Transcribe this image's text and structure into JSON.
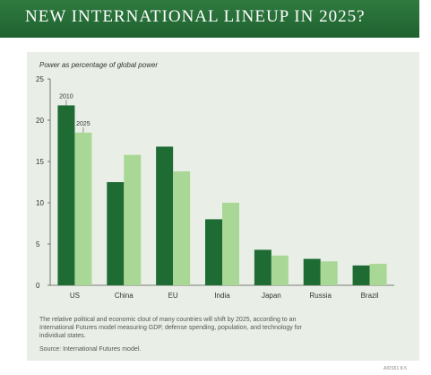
{
  "banner": {
    "title": "NEW INTERNATIONAL LINEUP IN 2025?"
  },
  "chart_data": {
    "type": "bar",
    "title": "NEW INTERNATIONAL LINEUP IN 2025?",
    "ylabel": "Power as percentage of global power",
    "categories": [
      "US",
      "China",
      "EU",
      "India",
      "Japan",
      "Russia",
      "Brazil"
    ],
    "series": [
      {
        "name": "2010",
        "values": [
          21.8,
          12.5,
          16.8,
          8.0,
          4.3,
          3.2,
          2.4
        ],
        "color": "#1e6b34"
      },
      {
        "name": "2025",
        "values": [
          18.5,
          15.8,
          13.8,
          10.0,
          3.6,
          2.9,
          2.6
        ],
        "color": "#a9d795"
      }
    ],
    "ylim": [
      0,
      25
    ],
    "yticks": [
      0,
      5,
      10,
      15,
      20,
      25
    ],
    "grid": false,
    "legend": "labels above US bars"
  },
  "caption": "The relative political and economic clout of many countries will shift by 2025, according to an International Futures model measuring GDP, defense spending, population, and technology for individual states.",
  "source": "Source: International Futures model.",
  "credit": "AIDS51 8-5"
}
